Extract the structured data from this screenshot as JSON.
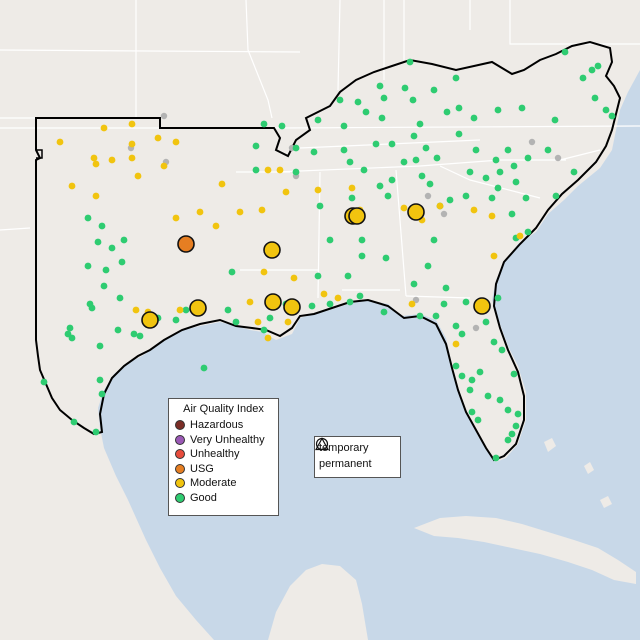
{
  "colors": {
    "ocean": "#c8d8e8",
    "land": "#eeebe7",
    "land_outside": "#f2efeb",
    "state_border": "#ffffff",
    "region_border": "#000000",
    "good": "#2ecc71",
    "moderate": "#f1c40f",
    "usg": "#e67e22",
    "unhealthy": "#e74c3c",
    "very_unhealthy": "#9b59b6",
    "hazardous": "#7b2d26",
    "no_data": "#b3b3b3"
  },
  "legend": {
    "title": "Air Quality Index",
    "items": [
      {
        "label": "Hazardous",
        "color": "#7b2d26"
      },
      {
        "label": "Very Unhealthy",
        "color": "#9b59b6"
      },
      {
        "label": "Unhealthy",
        "color": "#e74c3c"
      },
      {
        "label": "USG",
        "color": "#e67e22"
      },
      {
        "label": "Moderate",
        "color": "#f1c40f"
      },
      {
        "label": "Good",
        "color": "#2ecc71"
      }
    ]
  },
  "monitor_types": [
    {
      "label": "temporary",
      "shape": "circle"
    },
    {
      "label": "permanent",
      "shape": "triangle"
    }
  ],
  "monitors": {
    "good": [
      [
        410,
        62
      ],
      [
        456,
        78
      ],
      [
        380,
        86
      ],
      [
        405,
        88
      ],
      [
        434,
        90
      ],
      [
        384,
        98
      ],
      [
        413,
        100
      ],
      [
        340,
        100
      ],
      [
        358,
        102
      ],
      [
        318,
        120
      ],
      [
        366,
        112
      ],
      [
        344,
        126
      ],
      [
        382,
        118
      ],
      [
        420,
        124
      ],
      [
        447,
        112
      ],
      [
        474,
        118
      ],
      [
        459,
        108
      ],
      [
        498,
        110
      ],
      [
        522,
        108
      ],
      [
        555,
        120
      ],
      [
        583,
        78
      ],
      [
        592,
        70
      ],
      [
        598,
        66
      ],
      [
        565,
        52
      ],
      [
        595,
        98
      ],
      [
        606,
        110
      ],
      [
        612,
        116
      ],
      [
        296,
        148
      ],
      [
        296,
        172
      ],
      [
        314,
        152
      ],
      [
        344,
        150
      ],
      [
        350,
        162
      ],
      [
        376,
        144
      ],
      [
        392,
        144
      ],
      [
        414,
        136
      ],
      [
        426,
        148
      ],
      [
        437,
        158
      ],
      [
        459,
        134
      ],
      [
        476,
        150
      ],
      [
        496,
        160
      ],
      [
        508,
        150
      ],
      [
        528,
        158
      ],
      [
        514,
        166
      ],
      [
        500,
        172
      ],
      [
        486,
        178
      ],
      [
        470,
        172
      ],
      [
        422,
        176
      ],
      [
        430,
        184
      ],
      [
        466,
        196
      ],
      [
        450,
        200
      ],
      [
        492,
        198
      ],
      [
        498,
        188
      ],
      [
        516,
        182
      ],
      [
        548,
        150
      ],
      [
        574,
        172
      ],
      [
        556,
        196
      ],
      [
        526,
        198
      ],
      [
        512,
        214
      ],
      [
        528,
        232
      ],
      [
        516,
        238
      ],
      [
        416,
        160
      ],
      [
        404,
        162
      ],
      [
        364,
        170
      ],
      [
        380,
        186
      ],
      [
        388,
        196
      ],
      [
        392,
        180
      ],
      [
        352,
        198
      ],
      [
        320,
        206
      ],
      [
        330,
        240
      ],
      [
        362,
        240
      ],
      [
        362,
        256
      ],
      [
        386,
        258
      ],
      [
        348,
        276
      ],
      [
        318,
        276
      ],
      [
        256,
        146
      ],
      [
        264,
        124
      ],
      [
        282,
        126
      ],
      [
        256,
        170
      ],
      [
        434,
        240
      ],
      [
        440,
        206
      ],
      [
        428,
        266
      ],
      [
        446,
        288
      ],
      [
        414,
        284
      ],
      [
        384,
        312
      ],
      [
        420,
        316
      ],
      [
        436,
        316
      ],
      [
        444,
        304
      ],
      [
        456,
        326
      ],
      [
        462,
        334
      ],
      [
        466,
        302
      ],
      [
        498,
        298
      ],
      [
        486,
        322
      ],
      [
        494,
        342
      ],
      [
        502,
        350
      ],
      [
        456,
        366
      ],
      [
        462,
        376
      ],
      [
        472,
        380
      ],
      [
        480,
        372
      ],
      [
        470,
        390
      ],
      [
        488,
        396
      ],
      [
        500,
        400
      ],
      [
        514,
        374
      ],
      [
        508,
        410
      ],
      [
        518,
        414
      ],
      [
        508,
        440
      ],
      [
        512,
        434
      ],
      [
        516,
        426
      ],
      [
        496,
        458
      ],
      [
        472,
        412
      ],
      [
        478,
        420
      ],
      [
        88,
        218
      ],
      [
        102,
        226
      ],
      [
        124,
        240
      ],
      [
        112,
        248
      ],
      [
        98,
        242
      ],
      [
        88,
        266
      ],
      [
        106,
        270
      ],
      [
        122,
        262
      ],
      [
        120,
        298
      ],
      [
        90,
        304
      ],
      [
        92,
        308
      ],
      [
        70,
        328
      ],
      [
        68,
        334
      ],
      [
        72,
        338
      ],
      [
        104,
        286
      ],
      [
        100,
        346
      ],
      [
        134,
        334
      ],
      [
        140,
        336
      ],
      [
        158,
        318
      ],
      [
        176,
        320
      ],
      [
        186,
        310
      ],
      [
        228,
        310
      ],
      [
        236,
        322
      ],
      [
        264,
        330
      ],
      [
        270,
        318
      ],
      [
        286,
        304
      ],
      [
        312,
        306
      ],
      [
        330,
        304
      ],
      [
        350,
        302
      ],
      [
        360,
        296
      ],
      [
        44,
        382
      ],
      [
        74,
        422
      ],
      [
        96,
        432
      ],
      [
        100,
        380
      ],
      [
        102,
        394
      ],
      [
        232,
        272
      ],
      [
        118,
        330
      ],
      [
        204,
        368
      ]
    ],
    "moderate": [
      [
        104,
        128
      ],
      [
        132,
        124
      ],
      [
        158,
        138
      ],
      [
        60,
        142
      ],
      [
        94,
        158
      ],
      [
        96,
        164
      ],
      [
        132,
        144
      ],
      [
        132,
        158
      ],
      [
        138,
        176
      ],
      [
        72,
        186
      ],
      [
        96,
        196
      ],
      [
        112,
        160
      ],
      [
        176,
        142
      ],
      [
        164,
        166
      ],
      [
        222,
        184
      ],
      [
        176,
        218
      ],
      [
        200,
        212
      ],
      [
        240,
        212
      ],
      [
        262,
        210
      ],
      [
        268,
        170
      ],
      [
        280,
        170
      ],
      [
        286,
        192
      ],
      [
        318,
        190
      ],
      [
        352,
        188
      ],
      [
        360,
        210
      ],
      [
        404,
        208
      ],
      [
        422,
        220
      ],
      [
        440,
        206
      ],
      [
        474,
        210
      ],
      [
        492,
        216
      ],
      [
        520,
        236
      ],
      [
        494,
        256
      ],
      [
        412,
        304
      ],
      [
        456,
        344
      ],
      [
        294,
        278
      ],
      [
        324,
        294
      ],
      [
        338,
        298
      ],
      [
        264,
        272
      ],
      [
        250,
        302
      ],
      [
        258,
        322
      ],
      [
        180,
        310
      ],
      [
        268,
        338
      ],
      [
        288,
        322
      ],
      [
        136,
        310
      ],
      [
        148,
        312
      ],
      [
        216,
        226
      ]
    ],
    "no_data": [
      [
        164,
        116
      ],
      [
        131,
        148
      ],
      [
        166,
        162
      ],
      [
        292,
        148
      ],
      [
        296,
        176
      ],
      [
        380,
        186
      ],
      [
        428,
        196
      ],
      [
        444,
        214
      ],
      [
        498,
        188
      ],
      [
        532,
        142
      ],
      [
        558,
        158
      ],
      [
        416,
        300
      ],
      [
        476,
        328
      ]
    ],
    "big_moderate": [
      [
        272,
        250
      ],
      [
        353,
        216
      ],
      [
        357,
        216
      ],
      [
        416,
        212
      ],
      [
        198,
        308
      ],
      [
        150,
        320
      ],
      [
        273,
        302
      ],
      [
        292,
        307
      ],
      [
        482,
        306
      ]
    ],
    "big_usg": [
      [
        186,
        244
      ]
    ]
  }
}
